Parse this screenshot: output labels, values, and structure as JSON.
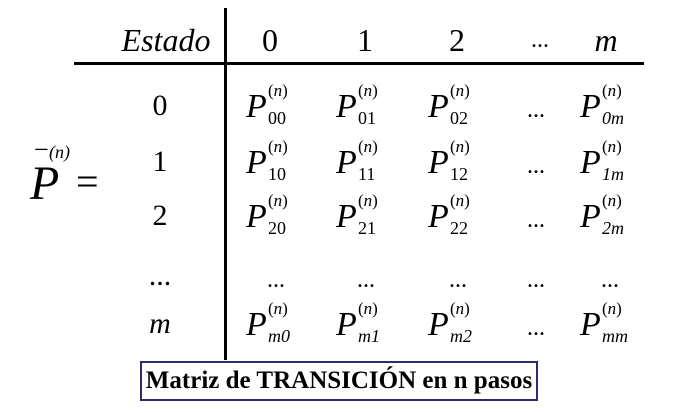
{
  "header": {
    "estado_label": "Estado",
    "columns": [
      "0",
      "1",
      "2",
      "...",
      "m"
    ]
  },
  "lhs": {
    "symbol": "P",
    "superscript": "(n)",
    "bar": "−",
    "equals": "="
  },
  "rows": [
    {
      "label": "0",
      "cells": [
        {
          "base": "P",
          "sup": "n",
          "sub": "00"
        },
        {
          "base": "P",
          "sup": "n",
          "sub": "01"
        },
        {
          "base": "P",
          "sup": "n",
          "sub": "02"
        },
        {
          "dots": "..."
        },
        {
          "base": "P",
          "sup": "n",
          "sub": "0m"
        }
      ]
    },
    {
      "label": "1",
      "cells": [
        {
          "base": "P",
          "sup": "n",
          "sub": "10"
        },
        {
          "base": "P",
          "sup": "n",
          "sub": "11"
        },
        {
          "base": "P",
          "sup": "n",
          "sub": "12"
        },
        {
          "dots": "..."
        },
        {
          "base": "P",
          "sup": "n",
          "sub": "1m"
        }
      ]
    },
    {
      "label": "2",
      "cells": [
        {
          "base": "P",
          "sup": "n",
          "sub": "20"
        },
        {
          "base": "P",
          "sup": "n",
          "sub": "21"
        },
        {
          "base": "P",
          "sup": "n",
          "sub": "22"
        },
        {
          "dots": "..."
        },
        {
          "base": "P",
          "sup": "n",
          "sub": "2m"
        }
      ]
    },
    {
      "label": "...",
      "cells": [
        {
          "dots": "..."
        },
        {
          "dots": "..."
        },
        {
          "dots": "..."
        },
        {
          "dots": "..."
        },
        {
          "dots": "..."
        }
      ]
    },
    {
      "label": "m",
      "cells": [
        {
          "base": "P",
          "sup": "n",
          "sub": "m0"
        },
        {
          "base": "P",
          "sup": "n",
          "sub": "m1"
        },
        {
          "base": "P",
          "sup": "n",
          "sub": "m2"
        },
        {
          "dots": "..."
        },
        {
          "base": "P",
          "sup": "n",
          "sub": "mm"
        }
      ]
    }
  ],
  "caption": "Matriz de TRANSICIÓN en n pasos"
}
